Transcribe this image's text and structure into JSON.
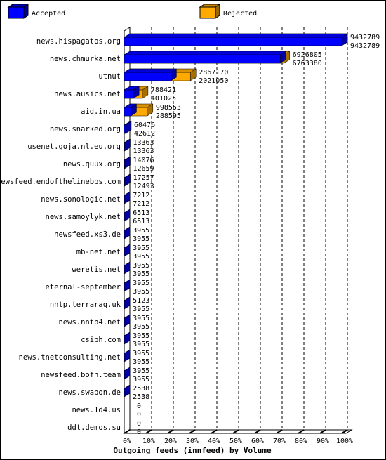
{
  "chart_data": {
    "type": "bar",
    "title": "Outgoing feeds (innfeed) by Volume",
    "categories": [
      "news.hispagatos.org",
      "news.chmurka.net",
      "utnut",
      "news.ausics.net",
      "aid.in.ua",
      "news.snarked.org",
      "usenet.goja.nl.eu.org",
      "news.quux.org",
      "newsfeed.endofthelinebbs.com",
      "news.sonologic.net",
      "news.samoylyk.net",
      "newsfeed.xs3.de",
      "mb-net.net",
      "weretis.net",
      "eternal-september",
      "nntp.terraraq.uk",
      "news.nntp4.net",
      "csiph.com",
      "news.tnetconsulting.net",
      "newsfeed.bofh.team",
      "news.swapon.de",
      "news.1d4.us",
      "ddt.demos.su"
    ],
    "series": [
      {
        "name": "Rejected",
        "color": "#ffaa00",
        "values": [
          9432789,
          6926805,
          2867170,
          788421,
          998553,
          60476,
          13363,
          14076,
          17257,
          7212,
          6513,
          3955,
          3955,
          3955,
          3955,
          5123,
          3955,
          3955,
          3955,
          3955,
          2538,
          0,
          0
        ]
      },
      {
        "name": "Accepted",
        "color": "#0000ff",
        "values": [
          9432789,
          6763380,
          2021050,
          401025,
          288595,
          42612,
          13363,
          12659,
          12493,
          7212,
          6513,
          3955,
          3955,
          3955,
          3955,
          3955,
          3955,
          3955,
          3955,
          3955,
          2538,
          0,
          0
        ]
      }
    ],
    "legend_order": [
      "Accepted",
      "Rejected"
    ],
    "xlim": [
      0,
      9432789
    ],
    "xticks": [
      {
        "value": 0,
        "label": "0%"
      },
      {
        "value": 943278.9,
        "label": "10%"
      },
      {
        "value": 1886557.8,
        "label": "20%"
      },
      {
        "value": 2829836.7,
        "label": "30%"
      },
      {
        "value": 3773115.6,
        "label": "40%"
      },
      {
        "value": 4716394.5,
        "label": "50%"
      },
      {
        "value": 5659673.4,
        "label": "60%"
      },
      {
        "value": 6602952.3,
        "label": "70%"
      },
      {
        "value": 7546231.2,
        "label": "80%"
      },
      {
        "value": 8489510.1,
        "label": "90%"
      },
      {
        "value": 9432789,
        "label": "100%"
      }
    ],
    "grid": true
  }
}
